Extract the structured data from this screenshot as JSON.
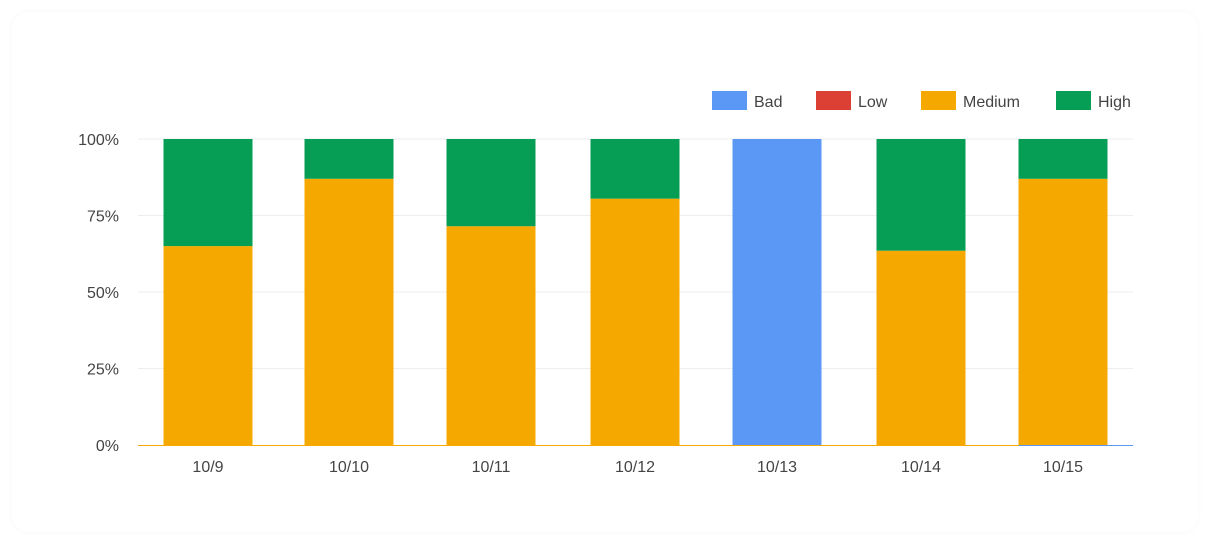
{
  "chart_data": {
    "type": "bar",
    "stacked": true,
    "percent": true,
    "categories": [
      "10/9",
      "10/10",
      "10/11",
      "10/12",
      "10/13",
      "10/14",
      "10/15"
    ],
    "series": [
      {
        "name": "Bad",
        "color": "#5b98f5",
        "values": [
          0,
          0,
          0,
          0,
          100,
          0,
          0
        ]
      },
      {
        "name": "Low",
        "color": "#dc3f33",
        "values": [
          0,
          0,
          0,
          0,
          0,
          0,
          0
        ]
      },
      {
        "name": "Medium",
        "color": "#f4a800",
        "values": [
          65,
          87,
          71.5,
          80.5,
          0,
          63.5,
          87
        ]
      },
      {
        "name": "High",
        "color": "#069d55",
        "values": [
          35,
          13,
          28.5,
          19.5,
          0,
          36.5,
          13
        ]
      }
    ],
    "yticks": [
      "0%",
      "25%",
      "50%",
      "75%",
      "100%"
    ],
    "ylim": [
      0,
      100
    ],
    "grid": true,
    "legend_position": "top-right"
  }
}
